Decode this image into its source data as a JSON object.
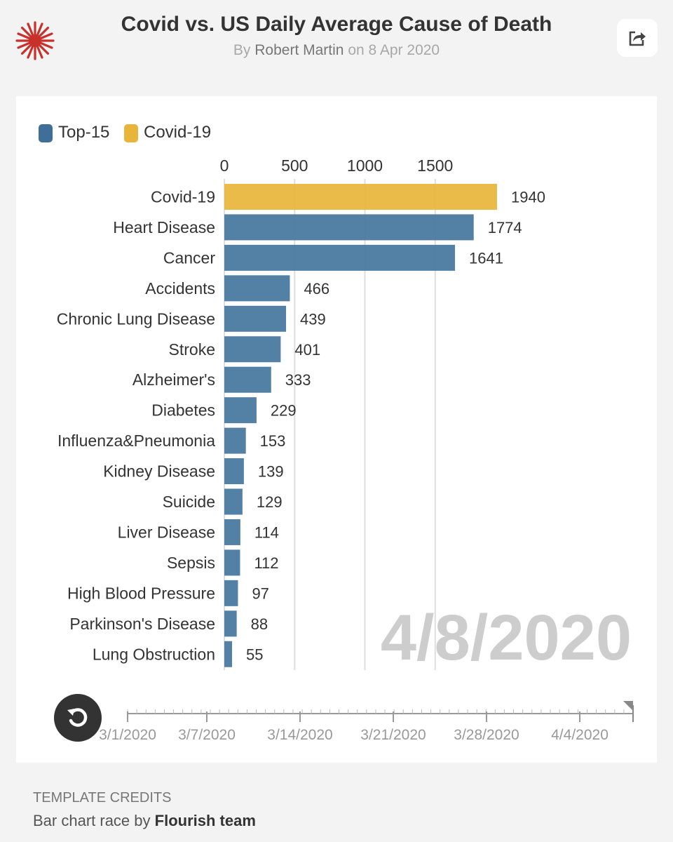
{
  "header": {
    "title": "Covid vs. US Daily Average Cause of Death",
    "by_prefix": "By",
    "author": "Robert Martin",
    "on_prefix": "on",
    "date": "8 Apr 2020"
  },
  "legend": [
    {
      "label": "Top-15",
      "color": "#3f6f98"
    },
    {
      "label": "Covid-19",
      "color": "#e8b53a"
    }
  ],
  "chart_data": {
    "type": "bar",
    "orientation": "horizontal",
    "title": "Covid vs. US Daily Average Cause of Death",
    "categories": [
      "Covid-19",
      "Heart Disease",
      "Cancer",
      "Accidents",
      "Chronic Lung Disease",
      "Stroke",
      "Alzheimer's",
      "Diabetes",
      "Influenza&Pneumonia",
      "Kidney Disease",
      "Suicide",
      "Liver Disease",
      "Sepsis",
      "High Blood Pressure",
      "Parkinson's Disease",
      "Lung Obstruction"
    ],
    "values": [
      1940,
      1774,
      1641,
      466,
      439,
      401,
      333,
      229,
      153,
      139,
      129,
      114,
      112,
      97,
      88,
      55
    ],
    "series_group": [
      "Covid-19",
      "Top-15",
      "Top-15",
      "Top-15",
      "Top-15",
      "Top-15",
      "Top-15",
      "Top-15",
      "Top-15",
      "Top-15",
      "Top-15",
      "Top-15",
      "Top-15",
      "Top-15",
      "Top-15",
      "Top-15"
    ],
    "xticks": [
      0,
      500,
      1000,
      1500
    ],
    "xlim": [
      0,
      1940
    ],
    "date_label": "4/8/2020",
    "timeline_labels": [
      "3/1/2020",
      "3/7/2020",
      "3/14/2020",
      "3/21/2020",
      "3/28/2020",
      "4/4/2020"
    ],
    "timeline_progress": 1.0,
    "colors": {
      "Top-15": "#3f6f98",
      "Covid-19": "#e8b53a"
    }
  },
  "credits": {
    "label": "TEMPLATE CREDITS",
    "text_prefix": "Bar chart race by",
    "text_bold": "Flourish team"
  }
}
